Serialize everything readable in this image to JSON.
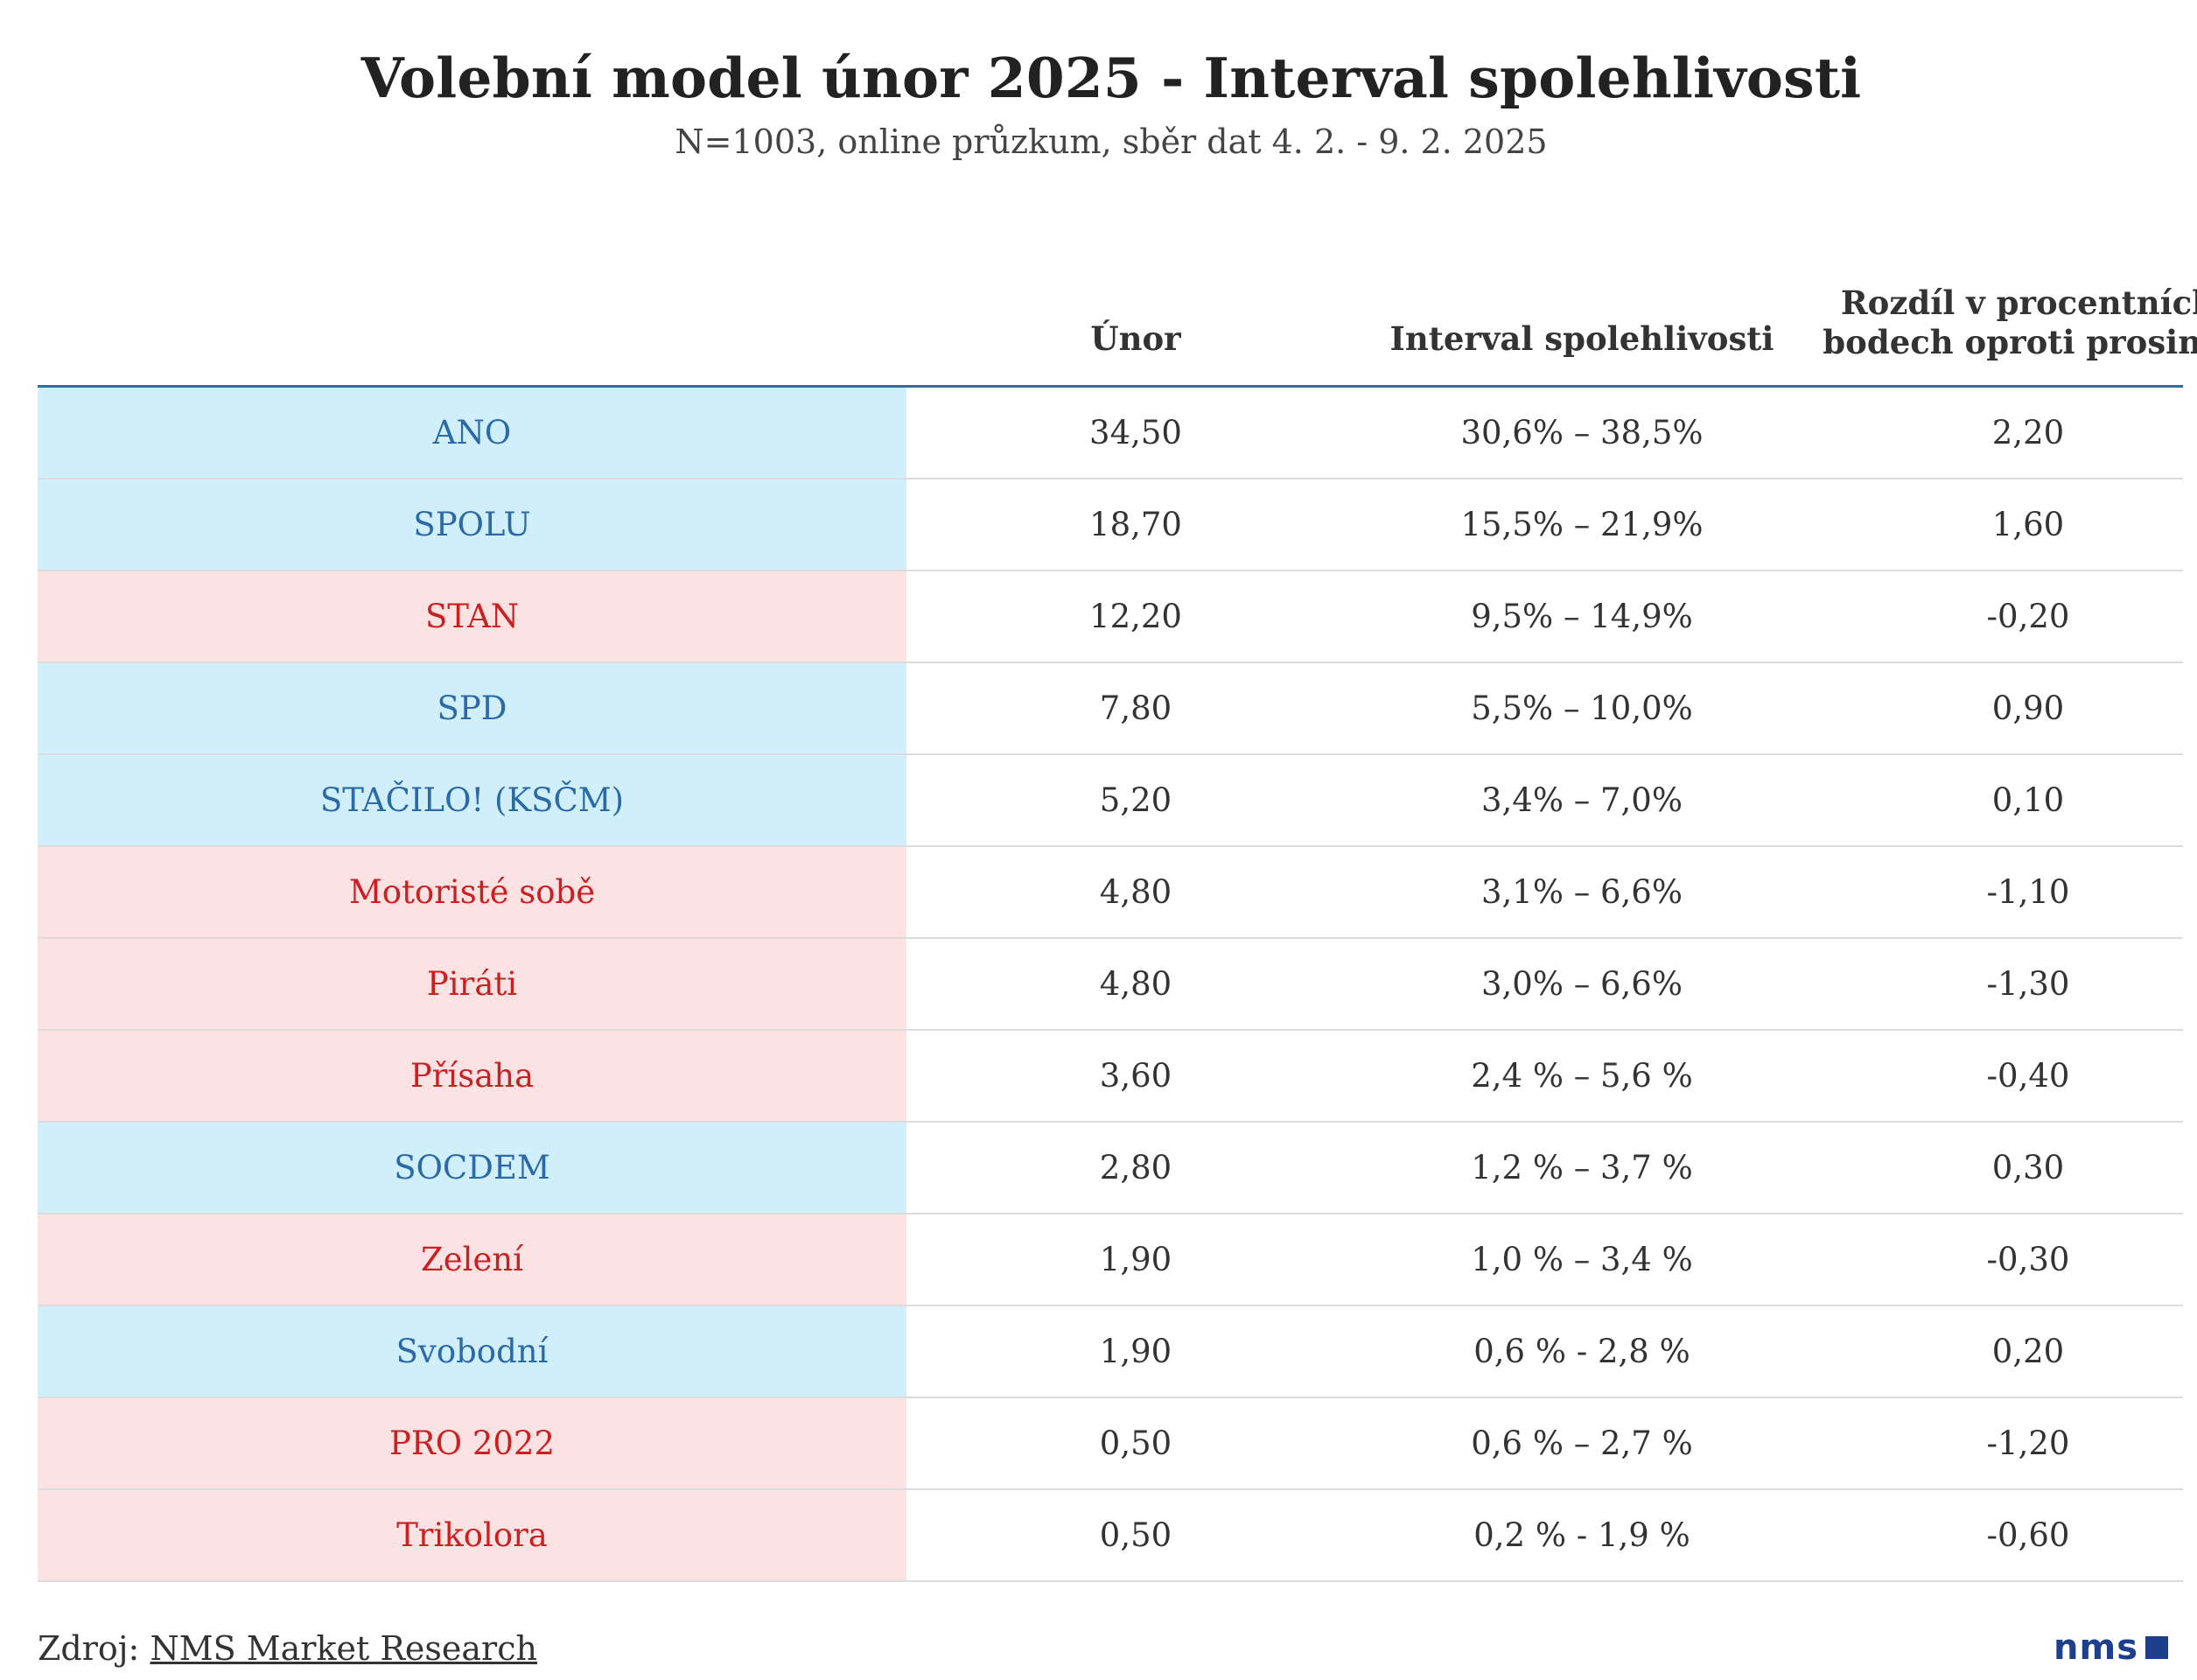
{
  "title": "Volební model únor 2025 - Interval spolehlivosti",
  "subtitle": "N=1003, online průzkum, sběr dat 4. 2. - 9. 2. 2025",
  "headers": {
    "col1": "Únor",
    "col2": "Interval spolehlivosti",
    "col3": "Rozdíl v procentních bodech oproti prosinci"
  },
  "colors": {
    "blue_bg": "#d1effb",
    "blue_text": "#2a6aa8",
    "red_bg": "#fde2e4",
    "red_text": "#cc1f1f"
  },
  "chart_data": {
    "type": "table",
    "columns": [
      "",
      "Únor",
      "Interval spolehlivosti",
      "Rozdíl v procentních bodech oproti prosinci"
    ],
    "rows": [
      {
        "party": "ANO",
        "color": "blue",
        "unor": "34,50",
        "interval": "30,6% – 38,5%",
        "rozdil": "2,20"
      },
      {
        "party": "SPOLU",
        "color": "blue",
        "unor": "18,70",
        "interval": "15,5% – 21,9%",
        "rozdil": "1,60"
      },
      {
        "party": "STAN",
        "color": "red",
        "unor": "12,20",
        "interval": "9,5% – 14,9%",
        "rozdil": "-0,20"
      },
      {
        "party": "SPD",
        "color": "blue",
        "unor": "7,80",
        "interval": "5,5% – 10,0%",
        "rozdil": "0,90"
      },
      {
        "party": "STAČILO! (KSČM)",
        "color": "blue",
        "unor": "5,20",
        "interval": "3,4% – 7,0%",
        "rozdil": "0,10"
      },
      {
        "party": "Motoristé sobě",
        "color": "red",
        "unor": "4,80",
        "interval": "3,1% – 6,6%",
        "rozdil": "-1,10"
      },
      {
        "party": "Piráti",
        "color": "red",
        "unor": "4,80",
        "interval": "3,0% – 6,6%",
        "rozdil": "-1,30"
      },
      {
        "party": "Přísaha",
        "color": "red",
        "unor": "3,60",
        "interval": "2,4 % – 5,6 %",
        "rozdil": "-0,40"
      },
      {
        "party": "SOCDEM",
        "color": "blue",
        "unor": "2,80",
        "interval": "1,2 % – 3,7 %",
        "rozdil": "0,30"
      },
      {
        "party": "Zelení",
        "color": "red",
        "unor": "1,90",
        "interval": "1,0 % – 3,4 %",
        "rozdil": "-0,30"
      },
      {
        "party": "Svobodní",
        "color": "blue",
        "unor": "1,90",
        "interval": "0,6 % - 2,8 %",
        "rozdil": "0,20"
      },
      {
        "party": "PRO 2022",
        "color": "red",
        "unor": "0,50",
        "interval": "0,6 % – 2,7 %",
        "rozdil": "-1,20"
      },
      {
        "party": "Trikolora",
        "color": "red",
        "unor": "0,50",
        "interval": "0,2 % - 1,9 %",
        "rozdil": "-0,60"
      }
    ]
  },
  "footer": {
    "source_prefix": "Zdroj:",
    "source_link": "NMS Market Research",
    "logo_text": "nms"
  }
}
